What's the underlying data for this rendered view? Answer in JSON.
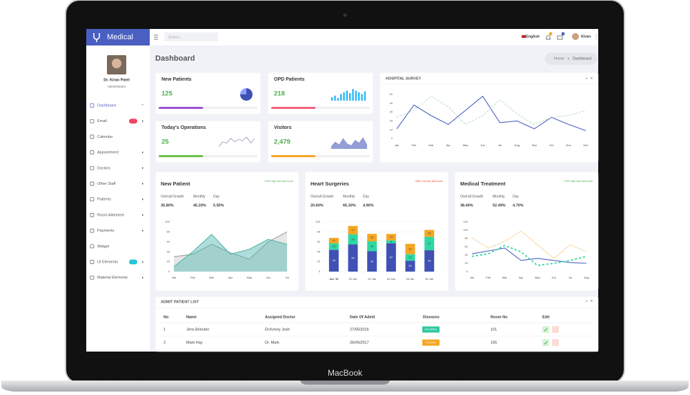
{
  "device_label": "MacBook",
  "header": {
    "brand": "Medical",
    "search_placeholder": "Search...",
    "language": "English",
    "user": "Kiran"
  },
  "sidebar": {
    "name": "Dr. Kiran Patel",
    "role": "Administrator",
    "menu": [
      {
        "label": "Dashboard",
        "arrow": "down",
        "active": true
      },
      {
        "label": "Email",
        "arrow": "right",
        "badge_color": "#f44366"
      },
      {
        "label": "Calendar"
      },
      {
        "label": "Appointment",
        "arrow": "right"
      },
      {
        "label": "Doctors",
        "arrow": "right"
      },
      {
        "label": "Other Staff",
        "arrow": "right"
      },
      {
        "label": "Patients",
        "arrow": "right"
      },
      {
        "label": "Room Allotment",
        "arrow": "right"
      },
      {
        "label": "Payments",
        "arrow": "right"
      },
      {
        "label": "Widget"
      },
      {
        "label": "UI Elements",
        "arrow": "right",
        "badge_color": "#26c6da"
      },
      {
        "label": "Material Elements",
        "arrow": "right"
      }
    ]
  },
  "page_title": "Dashboard",
  "breadcrumb": [
    "Home",
    "Dashboard"
  ],
  "stat_cards": [
    {
      "title": "New Patients",
      "value": "125",
      "progress": 45,
      "color": "#9c4fd6",
      "chart": {
        "type": "pie",
        "values": [
          75,
          25
        ],
        "colors": [
          "#3f51b5",
          "#8c9eff"
        ]
      }
    },
    {
      "title": "OPD Patients",
      "value": "218",
      "progress": 45,
      "color": "#f0627a",
      "chart": {
        "type": "bar",
        "values": [
          4,
          6,
          3,
          8,
          10,
          12,
          9,
          14,
          12,
          10,
          8,
          11
        ],
        "color": "#29b6f6"
      }
    },
    {
      "title": "Today's Operations",
      "value": "25",
      "progress": 45,
      "color": "#6cc04a",
      "chart": {
        "type": "line",
        "values": [
          2,
          6,
          5,
          9,
          6,
          8,
          7,
          10,
          5,
          9
        ],
        "color": "#8a94a6"
      }
    },
    {
      "title": "Visitors",
      "value": "2,479",
      "progress": 45,
      "color": "#f5a623",
      "chart": {
        "type": "area",
        "values": [
          3,
          8,
          5,
          12,
          6,
          4,
          10,
          7,
          13,
          5
        ],
        "color": "#7986cb"
      }
    }
  ],
  "chart_data": [
    {
      "type": "line",
      "title": "HOSPITAL SURVEY",
      "categories": [
        "Jan",
        "Feb",
        "Mar",
        "Apr",
        "May",
        "Jun",
        "Jul",
        "Aug",
        "Sep",
        "Oct",
        "Nov",
        "Dec"
      ],
      "ylim": [
        0,
        50
      ],
      "yticks": [
        0,
        10,
        20,
        30,
        40,
        50
      ],
      "series": [
        {
          "color": "#4a5fc1",
          "dash": false,
          "values": [
            11,
            38,
            26,
            16,
            32,
            48,
            18,
            20,
            11,
            24,
            16,
            9
          ]
        },
        {
          "color": "#b8dfc8",
          "dash": true,
          "values": [
            24,
            32,
            48,
            36,
            16,
            26,
            44,
            28,
            16,
            24,
            26,
            32
          ]
        }
      ]
    },
    {
      "type": "area",
      "title": "New Patient",
      "annotation": "+20% High than last month",
      "annotation_color": "#4caf50",
      "stats": [
        [
          "Overall Growth",
          "35.80%"
        ],
        [
          "Monthly",
          "45.20%"
        ],
        [
          "Day",
          "5.50%"
        ]
      ],
      "categories": [
        "Jan",
        "Feb",
        "Mar",
        "Apr",
        "May",
        "Jun",
        "Jul"
      ],
      "ylim": [
        0,
        100
      ],
      "yticks": [
        0,
        20,
        40,
        60,
        80,
        100
      ],
      "series": [
        {
          "color": "#9e9e9e",
          "values": [
            30,
            35,
            55,
            38,
            25,
            60,
            80
          ]
        },
        {
          "color": "#4db6ac",
          "values": [
            10,
            40,
            75,
            35,
            45,
            65,
            55
          ]
        }
      ]
    },
    {
      "type": "stacked_bar",
      "title": "Heart Surgeries",
      "annotation": "+36% Low than last month",
      "annotation_color": "#f44336",
      "stats": [
        [
          "Overall Growth",
          "20.60%"
        ],
        [
          "Monthly",
          "65.30%"
        ],
        [
          "Day",
          "4.90%"
        ]
      ],
      "categories": [
        "Jan '19",
        "02 Jan",
        "03 Jan",
        "04 Jan",
        "05 Jan",
        "06 Jan"
      ],
      "ylim": [
        0,
        100
      ],
      "yticks": [
        0,
        20,
        40,
        60,
        80,
        100
      ],
      "series": [
        {
          "color": "#3f51b5",
          "values": [
            44,
            55,
            41,
            57,
            22,
            43
          ]
        },
        {
          "color": "#2ed8a3",
          "values": [
            13,
            20,
            20,
            6,
            13,
            27
          ]
        },
        {
          "color": "#f5a623",
          "values": [
            11,
            17,
            15,
            13,
            21,
            14
          ]
        }
      ]
    },
    {
      "type": "line",
      "title": "Medical Treatment",
      "annotation": "+20% High than last month",
      "annotation_color": "#4caf50",
      "stats": [
        [
          "Overall Growth",
          "38.40%"
        ],
        [
          "Monthly",
          "52.49%"
        ],
        [
          "Day",
          "4.70%"
        ]
      ],
      "categories": [
        "Jan",
        "Feb",
        "Mar",
        "Apr",
        "May",
        "Jun",
        "Jul",
        "Aug"
      ],
      "ylim": [
        0,
        120
      ],
      "yticks": [
        0,
        20,
        40,
        60,
        80,
        100,
        120
      ],
      "series": [
        {
          "color": "#4a5fc1",
          "dash": false,
          "values": [
            43,
            50,
            57,
            27,
            32,
            27,
            22,
            20
          ]
        },
        {
          "color": "#f5a623",
          "dash": true,
          "values": [
            82,
            57,
            73,
            98,
            65,
            32,
            65,
            48
          ]
        },
        {
          "color": "#26d9a0",
          "dash": true,
          "values": [
            37,
            43,
            63,
            48,
            15,
            20,
            27,
            37
          ]
        }
      ]
    }
  ],
  "table": {
    "title": "ADMIT PATIENT LIST",
    "columns": [
      "No",
      "Name",
      "Assigned Doctor",
      "Date Of Admit",
      "Diseases",
      "Room No",
      "Edit"
    ],
    "rows": [
      [
        "1",
        "Jens Brincker",
        "Dr.Kenny Josh",
        "27/05/2016",
        "Influenza",
        "101"
      ],
      [
        "2",
        "Mark Hay",
        "Dr. Mark",
        "26/05/2017",
        "Cholera",
        "105"
      ]
    ],
    "badge_colors": [
      "#2fc7a0",
      "#f5a623"
    ]
  }
}
